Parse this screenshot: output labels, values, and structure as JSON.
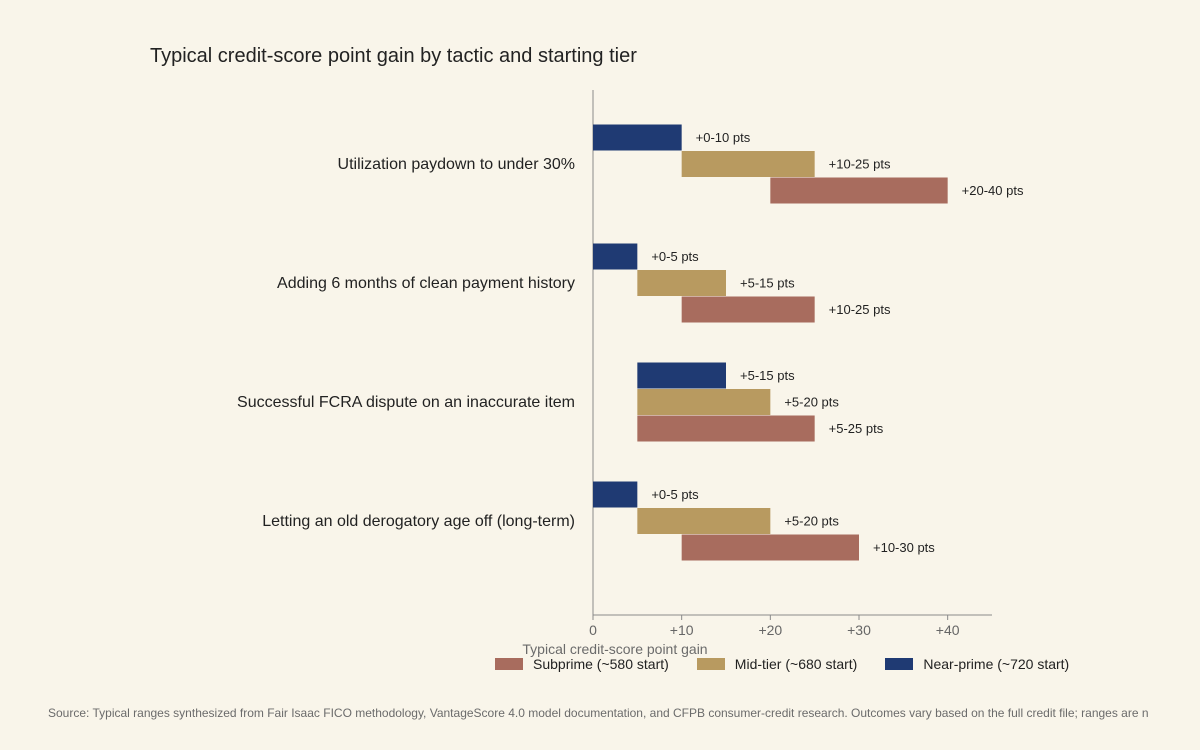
{
  "chart_data": {
    "type": "bar",
    "orientation": "horizontal",
    "title": "Typical credit-score point gain by tactic and starting tier",
    "xlabel": "Typical credit-score point gain",
    "ylabel": "",
    "xlim": [
      0,
      45
    ],
    "x_ticks": [
      0,
      10,
      20,
      30,
      40
    ],
    "x_tick_labels": [
      "0",
      "+10",
      "+20",
      "+30",
      "+40"
    ],
    "grid": false,
    "legend_position": "bottom",
    "categories": [
      "Utilization paydown to under 30%",
      "Adding 6 months of clean payment history",
      "Successful FCRA dispute on an inaccurate item",
      "Letting an old derogatory age off (long-term)"
    ],
    "series": [
      {
        "name": "Near-prime (~720 start)",
        "color": "#1f3a73",
        "ranges": [
          [
            0,
            10
          ],
          [
            0,
            5
          ],
          [
            5,
            15
          ],
          [
            0,
            5
          ]
        ],
        "labels": [
          "+0-10 pts",
          "+0-5 pts",
          "+5-15 pts",
          "+0-5 pts"
        ]
      },
      {
        "name": "Mid-tier (~680 start)",
        "color": "#b89a60",
        "ranges": [
          [
            10,
            25
          ],
          [
            5,
            15
          ],
          [
            5,
            20
          ],
          [
            5,
            20
          ]
        ],
        "labels": [
          "+10-25 pts",
          "+5-15 pts",
          "+5-20 pts",
          "+5-20 pts"
        ]
      },
      {
        "name": "Subprime (~580 start)",
        "color": "#a86c5e",
        "ranges": [
          [
            20,
            40
          ],
          [
            10,
            25
          ],
          [
            5,
            25
          ],
          [
            10,
            30
          ]
        ],
        "labels": [
          "+20-40 pts",
          "+10-25 pts",
          "+5-25 pts",
          "+10-30 pts"
        ]
      }
    ],
    "legend_order": [
      "Subprime (~580 start)",
      "Mid-tier (~680 start)",
      "Near-prime (~720 start)"
    ]
  },
  "source_note": "Source: Typical ranges synthesized from Fair Isaac FICO methodology, VantageScore 4.0 model documentation, and CFPB consumer-credit research. Outcomes vary based on the full credit file; ranges are n"
}
